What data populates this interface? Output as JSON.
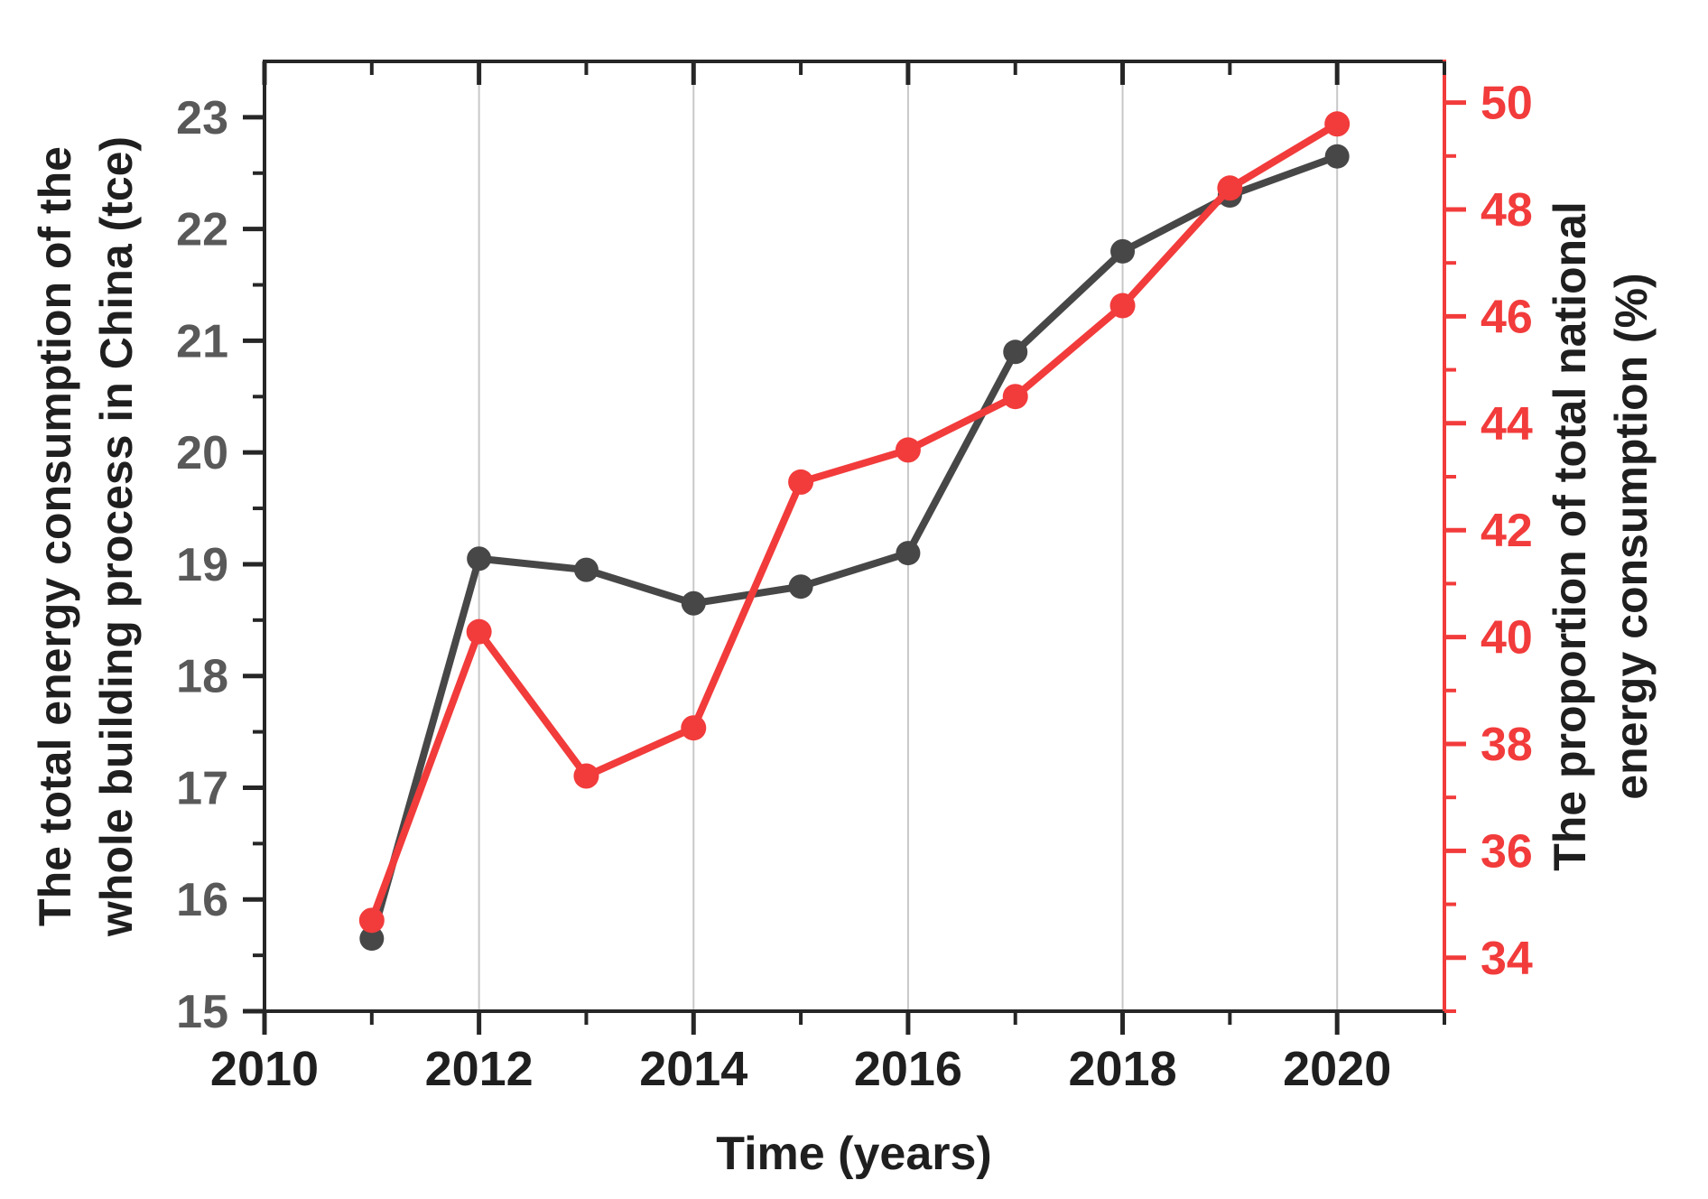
{
  "chart_data": {
    "type": "line",
    "title": "",
    "x_axis": {
      "title": "Time (years)",
      "range": [
        2010,
        2021
      ],
      "major_ticks": [
        2010,
        2012,
        2014,
        2016,
        2018,
        2020
      ],
      "major_tick_labels": [
        "2010",
        "2012",
        "2014",
        "2016",
        "2018",
        "2020"
      ],
      "minor_ticks": [
        2011,
        2013,
        2015,
        2017,
        2019,
        2021
      ],
      "gridline_years": [
        2012,
        2014,
        2016,
        2018,
        2020
      ],
      "label_color": "#1f1f1f"
    },
    "left_axis": {
      "title_line1": "The total energy consumption of the",
      "title_line2": "whole building process in China (tce)",
      "range": [
        15,
        23.5
      ],
      "major_ticks": [
        15,
        16,
        17,
        18,
        19,
        20,
        21,
        22,
        23
      ],
      "major_tick_labels": [
        "15",
        "16",
        "17",
        "18",
        "19",
        "20",
        "21",
        "22",
        "23"
      ],
      "minor_ticks": [
        15.5,
        16.5,
        17.5,
        18.5,
        19.5,
        20.5,
        21.5,
        22.5
      ],
      "label_color": "#595959",
      "axis_color": "#262626",
      "title_color": "#1f1f1f"
    },
    "right_axis": {
      "title_line1": "The proportion of total national",
      "title_line2": "energy consumption (%)",
      "range": [
        33,
        50.77
      ],
      "major_ticks": [
        34,
        36,
        38,
        40,
        42,
        44,
        46,
        48,
        50
      ],
      "major_tick_labels": [
        "34",
        "36",
        "38",
        "40",
        "42",
        "44",
        "46",
        "48",
        "50"
      ],
      "minor_ticks": [
        33,
        35,
        37,
        39,
        41,
        43,
        45,
        47,
        49
      ],
      "label_color": "#f23b3b",
      "axis_color": "#f23b3b",
      "title_color": "#1f1f1f"
    },
    "categories": [
      2011,
      2012,
      2013,
      2014,
      2015,
      2016,
      2017,
      2018,
      2019,
      2020
    ],
    "series": [
      {
        "name": "Total energy consumption of the whole building process (tce)",
        "axis": "left",
        "color": "#474747",
        "marker": "circle",
        "values": [
          15.65,
          19.05,
          18.95,
          18.65,
          18.8,
          19.1,
          20.9,
          21.8,
          22.3,
          22.65
        ]
      },
      {
        "name": "Proportion of total national energy consumption (%)",
        "axis": "right",
        "color": "#f23b3b",
        "marker": "circle",
        "values": [
          34.7,
          40.1,
          37.4,
          38.3,
          42.9,
          43.5,
          44.5,
          46.2,
          48.4,
          49.6
        ]
      }
    ],
    "grid": {
      "vertical": true,
      "horizontal": false,
      "color": "#c8c8c8"
    },
    "legend": {
      "visible": false
    },
    "background": "#ffffff"
  }
}
